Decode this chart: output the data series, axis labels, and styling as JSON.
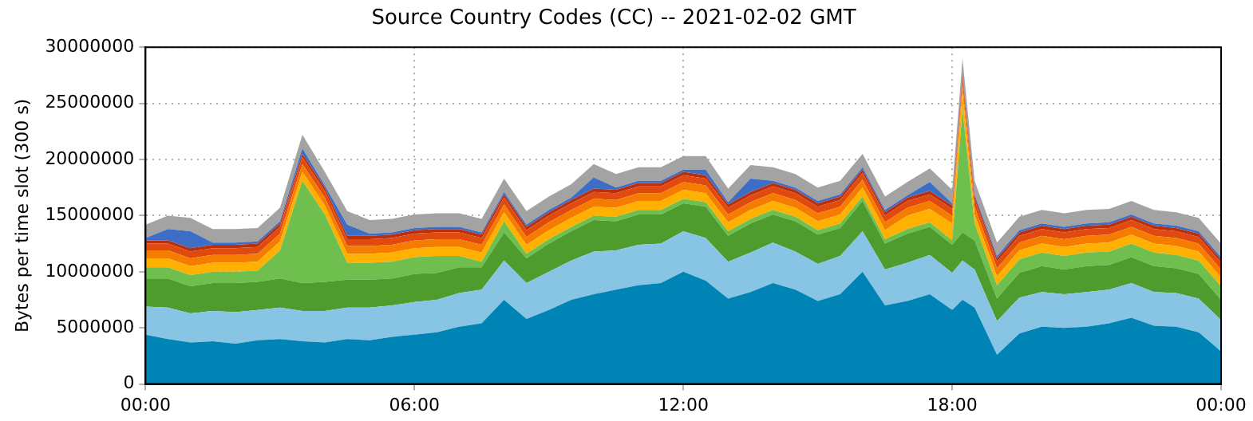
{
  "chart_data": {
    "type": "area",
    "title": "Source Country Codes (CC) -- 2021-02-02 GMT",
    "ylabel": "Bytes per time slot (300 s)",
    "stacked": true,
    "grid": true,
    "x": [
      0,
      0.5,
      1,
      1.5,
      2,
      2.5,
      3,
      3.5,
      4,
      4.5,
      5,
      5.5,
      6,
      6.5,
      7,
      7.5,
      8,
      8.5,
      9,
      9.5,
      10,
      10.5,
      11,
      11.5,
      12,
      12.5,
      13,
      13.5,
      14,
      14.5,
      15,
      15.5,
      16,
      16.5,
      17,
      17.5,
      18,
      18.23,
      18.5,
      19,
      19.5,
      20,
      20.5,
      21,
      21.5,
      22,
      22.5,
      23,
      23.5,
      24
    ],
    "xlim": [
      0,
      24
    ],
    "xticks": [
      {
        "value": 0,
        "label": "00:00"
      },
      {
        "value": 6,
        "label": "06:00"
      },
      {
        "value": 12,
        "label": "12:00"
      },
      {
        "value": 18,
        "label": "18:00"
      },
      {
        "value": 24,
        "label": "00:00"
      }
    ],
    "ylim": [
      0,
      30000000
    ],
    "yticks": [
      0,
      5000000,
      10000000,
      15000000,
      20000000,
      25000000,
      30000000
    ],
    "series": [
      {
        "color": "#0083b5",
        "values": [
          4400000,
          4000000,
          3700000,
          3800000,
          3600000,
          3900000,
          4000000,
          3800000,
          3700000,
          4000000,
          3900000,
          4200000,
          4400000,
          4600000,
          5100000,
          5400000,
          7500000,
          5800000,
          6600000,
          7500000,
          8000000,
          8400000,
          8800000,
          9000000,
          10000000,
          9200000,
          7600000,
          8200000,
          9000000,
          8400000,
          7400000,
          8000000,
          10000000,
          7000000,
          7400000,
          8000000,
          6600000,
          7500000,
          6800000,
          2600000,
          4500000,
          5100000,
          5000000,
          5100000,
          5400000,
          5900000,
          5200000,
          5100000,
          4600000,
          2900000
        ]
      },
      {
        "color": "#88c4e3",
        "values": [
          2500000,
          2800000,
          2600000,
          2700000,
          2800000,
          2700000,
          2800000,
          2700000,
          2800000,
          2800000,
          2900000,
          2800000,
          2900000,
          2900000,
          3000000,
          3000000,
          3500000,
          3200000,
          3400000,
          3500000,
          3800000,
          3500000,
          3600000,
          3500000,
          3600000,
          3800000,
          3300000,
          3500000,
          3600000,
          3400000,
          3300000,
          3400000,
          3600000,
          3200000,
          3400000,
          3500000,
          3300000,
          3500000,
          3400000,
          3000000,
          3200000,
          3100000,
          3000000,
          3100000,
          3000000,
          3100000,
          3000000,
          3000000,
          3000000,
          2800000
        ]
      },
      {
        "color": "#4f9c2e",
        "values": [
          2500000,
          2600000,
          2400000,
          2500000,
          2600000,
          2500000,
          2600000,
          2500000,
          2600000,
          2500000,
          2500000,
          2400000,
          2500000,
          2400000,
          2300000,
          2000000,
          2500000,
          2200000,
          2500000,
          2600000,
          2800000,
          2600000,
          2700000,
          2600000,
          2500000,
          2800000,
          2300000,
          2600000,
          2500000,
          2700000,
          2600000,
          2500000,
          2700000,
          2300000,
          2600000,
          2500000,
          2500000,
          2500000,
          2600000,
          2000000,
          2200000,
          2300000,
          2200000,
          2300000,
          2200000,
          2300000,
          2300000,
          2200000,
          2200000,
          1800000
        ]
      },
      {
        "color": "#6fbf4f",
        "values": [
          1000000,
          1000000,
          1000000,
          1000000,
          1000000,
          1000000,
          2500000,
          9100000,
          6000000,
          1500000,
          1500000,
          1500000,
          1500000,
          1500000,
          1000000,
          500000,
          1000000,
          400000,
          400000,
          400000,
          400000,
          400000,
          400000,
          400000,
          400000,
          400000,
          400000,
          400000,
          400000,
          400000,
          400000,
          400000,
          400000,
          400000,
          400000,
          400000,
          400000,
          11000000,
          1500000,
          1200000,
          1200000,
          1200000,
          1200000,
          1200000,
          1200000,
          1200000,
          1200000,
          1200000,
          1200000,
          1200000
        ]
      },
      {
        "color": "#ffb000",
        "values": [
          800000,
          800000,
          800000,
          800000,
          800000,
          800000,
          800000,
          800000,
          800000,
          800000,
          800000,
          800000,
          800000,
          800000,
          800000,
          800000,
          800000,
          800000,
          800000,
          800000,
          800000,
          800000,
          800000,
          800000,
          800000,
          800000,
          800000,
          800000,
          800000,
          800000,
          800000,
          800000,
          800000,
          800000,
          1200000,
          1200000,
          1500000,
          1500000,
          800000,
          800000,
          800000,
          800000,
          800000,
          800000,
          800000,
          800000,
          800000,
          800000,
          800000,
          800000
        ]
      },
      {
        "color": "#f57c00",
        "values": [
          700000,
          700000,
          700000,
          700000,
          700000,
          700000,
          700000,
          700000,
          700000,
          700000,
          700000,
          700000,
          700000,
          700000,
          700000,
          700000,
          700000,
          700000,
          700000,
          700000,
          700000,
          700000,
          700000,
          700000,
          700000,
          700000,
          700000,
          700000,
          700000,
          700000,
          700000,
          700000,
          700000,
          700000,
          700000,
          700000,
          700000,
          700000,
          700000,
          700000,
          700000,
          700000,
          700000,
          700000,
          700000,
          700000,
          700000,
          700000,
          700000,
          700000
        ]
      },
      {
        "color": "#e04a0f",
        "values": [
          600000,
          600000,
          600000,
          600000,
          600000,
          600000,
          600000,
          600000,
          600000,
          600000,
          600000,
          600000,
          600000,
          600000,
          600000,
          600000,
          600000,
          600000,
          600000,
          600000,
          600000,
          600000,
          600000,
          600000,
          600000,
          600000,
          600000,
          600000,
          600000,
          600000,
          600000,
          600000,
          600000,
          600000,
          600000,
          600000,
          600000,
          600000,
          600000,
          600000,
          600000,
          600000,
          600000,
          600000,
          600000,
          600000,
          600000,
          600000,
          600000,
          600000
        ]
      },
      {
        "color": "#b8300f",
        "values": [
          300000,
          300000,
          300000,
          300000,
          300000,
          300000,
          300000,
          300000,
          300000,
          300000,
          300000,
          300000,
          300000,
          300000,
          300000,
          300000,
          300000,
          300000,
          300000,
          300000,
          300000,
          300000,
          300000,
          300000,
          300000,
          300000,
          300000,
          300000,
          300000,
          300000,
          300000,
          300000,
          300000,
          300000,
          300000,
          300000,
          300000,
          300000,
          300000,
          300000,
          300000,
          300000,
          300000,
          300000,
          300000,
          300000,
          300000,
          300000,
          300000,
          300000
        ]
      },
      {
        "color": "#3d6ec6",
        "values": [
          200000,
          1000000,
          1500000,
          200000,
          200000,
          200000,
          200000,
          500000,
          200000,
          1000000,
          200000,
          200000,
          200000,
          200000,
          200000,
          200000,
          200000,
          200000,
          200000,
          200000,
          1000000,
          200000,
          200000,
          200000,
          200000,
          500000,
          200000,
          1200000,
          200000,
          200000,
          200000,
          200000,
          200000,
          200000,
          200000,
          800000,
          200000,
          200000,
          200000,
          200000,
          200000,
          200000,
          200000,
          200000,
          200000,
          200000,
          200000,
          200000,
          200000,
          200000
        ]
      },
      {
        "color": "#a3a3a3",
        "values": [
          1200000,
          1200000,
          1200000,
          1200000,
          1200000,
          1200000,
          1200000,
          1200000,
          1200000,
          1200000,
          1200000,
          1200000,
          1200000,
          1200000,
          1200000,
          1200000,
          1200000,
          1200000,
          1200000,
          1200000,
          1200000,
          1200000,
          1200000,
          1200000,
          1200000,
          1200000,
          1200000,
          1200000,
          1200000,
          1200000,
          1200000,
          1200000,
          1200000,
          1200000,
          1200000,
          1200000,
          1200000,
          1200000,
          1200000,
          1200000,
          1200000,
          1200000,
          1200000,
          1200000,
          1200000,
          1200000,
          1200000,
          1200000,
          1200000,
          1200000
        ]
      }
    ]
  }
}
